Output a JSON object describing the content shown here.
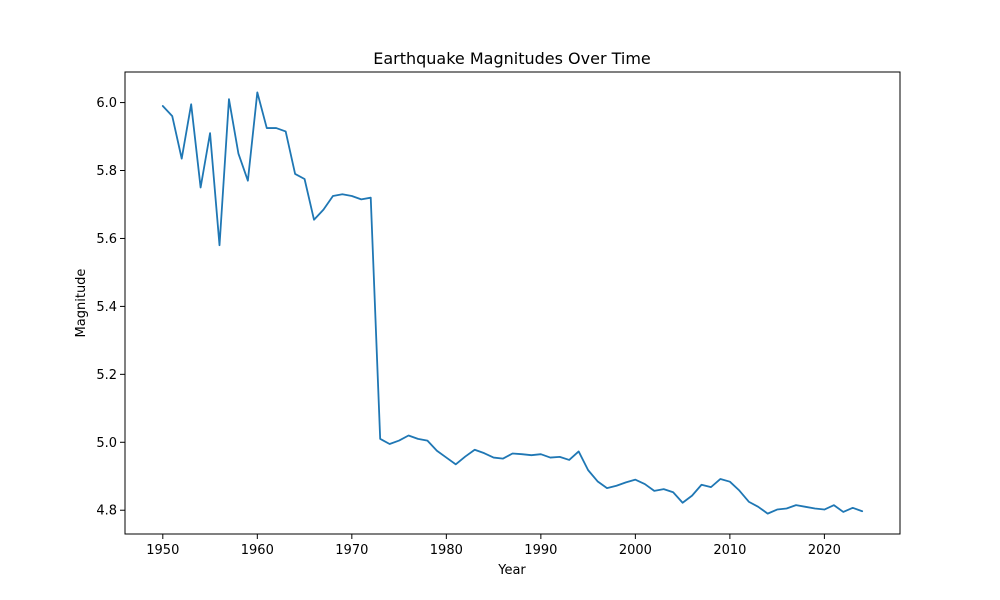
{
  "chart_data": {
    "type": "line",
    "title": "Earthquake Magnitudes Over Time",
    "xlabel": "Year",
    "ylabel": "Magnitude",
    "xlim": [
      1946,
      2028
    ],
    "ylim": [
      4.73,
      6.09
    ],
    "x_ticks": [
      1950,
      1960,
      1970,
      1980,
      1990,
      2000,
      2010,
      2020
    ],
    "y_ticks": [
      4.8,
      5.0,
      5.2,
      5.4,
      5.6,
      5.8,
      6.0
    ],
    "grid": false,
    "legend": "none",
    "series": [
      {
        "color": "#1f77b4",
        "x": [
          1950,
          1951,
          1952,
          1953,
          1954,
          1955,
          1956,
          1957,
          1958,
          1959,
          1960,
          1961,
          1962,
          1963,
          1964,
          1965,
          1966,
          1967,
          1968,
          1969,
          1970,
          1971,
          1972,
          1973,
          1974,
          1975,
          1976,
          1977,
          1978,
          1979,
          1980,
          1981,
          1982,
          1983,
          1984,
          1985,
          1986,
          1987,
          1988,
          1989,
          1990,
          1991,
          1992,
          1993,
          1994,
          1995,
          1996,
          1997,
          1998,
          1999,
          2000,
          2001,
          2002,
          2003,
          2004,
          2005,
          2006,
          2007,
          2008,
          2009,
          2010,
          2011,
          2012,
          2013,
          2014,
          2015,
          2016,
          2017,
          2018,
          2019,
          2020,
          2021,
          2022,
          2023,
          2024
        ],
        "y": [
          5.99,
          5.96,
          5.835,
          5.995,
          5.75,
          5.91,
          5.58,
          6.01,
          5.85,
          5.77,
          6.03,
          5.925,
          5.925,
          5.915,
          5.79,
          5.775,
          5.655,
          5.685,
          5.725,
          5.73,
          5.725,
          5.715,
          5.72,
          5.01,
          4.995,
          5.005,
          5.02,
          5.01,
          5.005,
          4.975,
          4.955,
          4.935,
          4.958,
          4.978,
          4.968,
          4.955,
          4.952,
          4.967,
          4.965,
          4.962,
          4.965,
          4.955,
          4.957,
          4.948,
          4.973,
          4.918,
          4.885,
          4.865,
          4.872,
          4.882,
          4.89,
          4.877,
          4.857,
          4.862,
          4.853,
          4.822,
          4.843,
          4.875,
          4.868,
          4.892,
          4.884,
          4.858,
          4.825,
          4.81,
          4.79,
          4.802,
          4.805,
          4.815,
          4.81,
          4.805,
          4.802,
          4.815,
          4.795,
          4.807,
          4.797
        ]
      }
    ]
  }
}
